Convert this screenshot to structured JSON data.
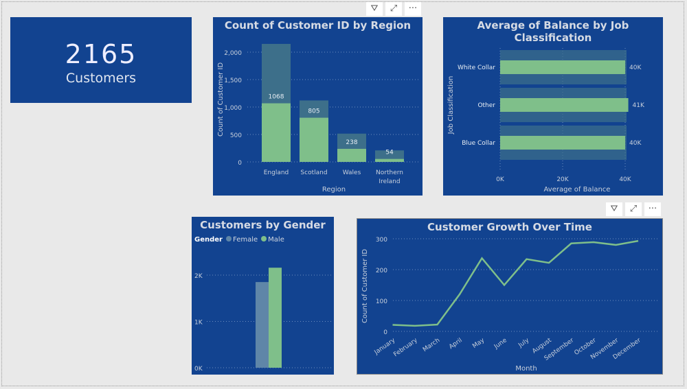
{
  "kpi": {
    "value": "2165",
    "label": "Customers"
  },
  "toolbar": {
    "filter_icon": "filter-icon",
    "focus_icon": "focus-mode-icon",
    "more_icon": "more-options-icon"
  },
  "colors": {
    "panel": "#124390",
    "primary": "#7fbf8a",
    "secondary": "#3d6f8a",
    "female": "#5f86a8"
  },
  "region_chart": {
    "title": "Count of Customer ID by Region",
    "chart_data": {
      "type": "bar",
      "title": "Count of Customer ID by Region",
      "xlabel": "Region",
      "ylabel": "Count of Customer ID",
      "categories": [
        "England",
        "Scotland",
        "Wales",
        "Northern Ireland"
      ],
      "totals": [
        2150,
        1120,
        515,
        210
      ],
      "highlighted": [
        1068,
        805,
        238,
        54
      ],
      "data_labels": [
        "1068",
        "805",
        "238",
        "54"
      ],
      "yticks": [
        "0",
        "500",
        "1,000",
        "1,500",
        "2,000"
      ],
      "ylim": [
        0,
        2200
      ],
      "grid": true
    }
  },
  "balance_chart": {
    "title": "Average of Balance by Job Classification",
    "chart_data": {
      "type": "bar",
      "orientation": "horizontal",
      "title": "Average of Balance by Job Classification",
      "xlabel": "Average of Balance",
      "ylabel": "Job Classification",
      "categories": [
        "White Collar",
        "Other",
        "Blue Collar"
      ],
      "values": [
        40000,
        41000,
        40000
      ],
      "data_labels": [
        "40K",
        "41K",
        "40K"
      ],
      "xticks": [
        "0K",
        "20K",
        "40K"
      ],
      "xlim": [
        0,
        44000
      ],
      "grid": true
    }
  },
  "gender_chart": {
    "title": "Customers by Gender",
    "legend_title": "Gender",
    "chart_data": {
      "type": "bar",
      "title": "Customers by Gender",
      "series": [
        {
          "name": "Female",
          "values": [
            1850
          ]
        },
        {
          "name": "Male",
          "values": [
            2160
          ]
        }
      ],
      "yticks": [
        "0K",
        "1K",
        "2K"
      ],
      "ylim": [
        0,
        2400
      ],
      "legend": "top-left"
    }
  },
  "growth_chart": {
    "title": "Customer Growth Over Time",
    "chart_data": {
      "type": "line",
      "title": "Customer Growth Over Time",
      "xlabel": "Month",
      "ylabel": "Count of Customer ID",
      "x": [
        "January",
        "February",
        "March",
        "April",
        "May",
        "June",
        "July",
        "August",
        "September",
        "October",
        "November",
        "December"
      ],
      "y": [
        21,
        18,
        22,
        120,
        237,
        150,
        234,
        222,
        285,
        289,
        280,
        293
      ],
      "yticks": [
        "0",
        "100",
        "200",
        "300"
      ],
      "ylim": [
        0,
        310
      ],
      "grid": true
    }
  }
}
